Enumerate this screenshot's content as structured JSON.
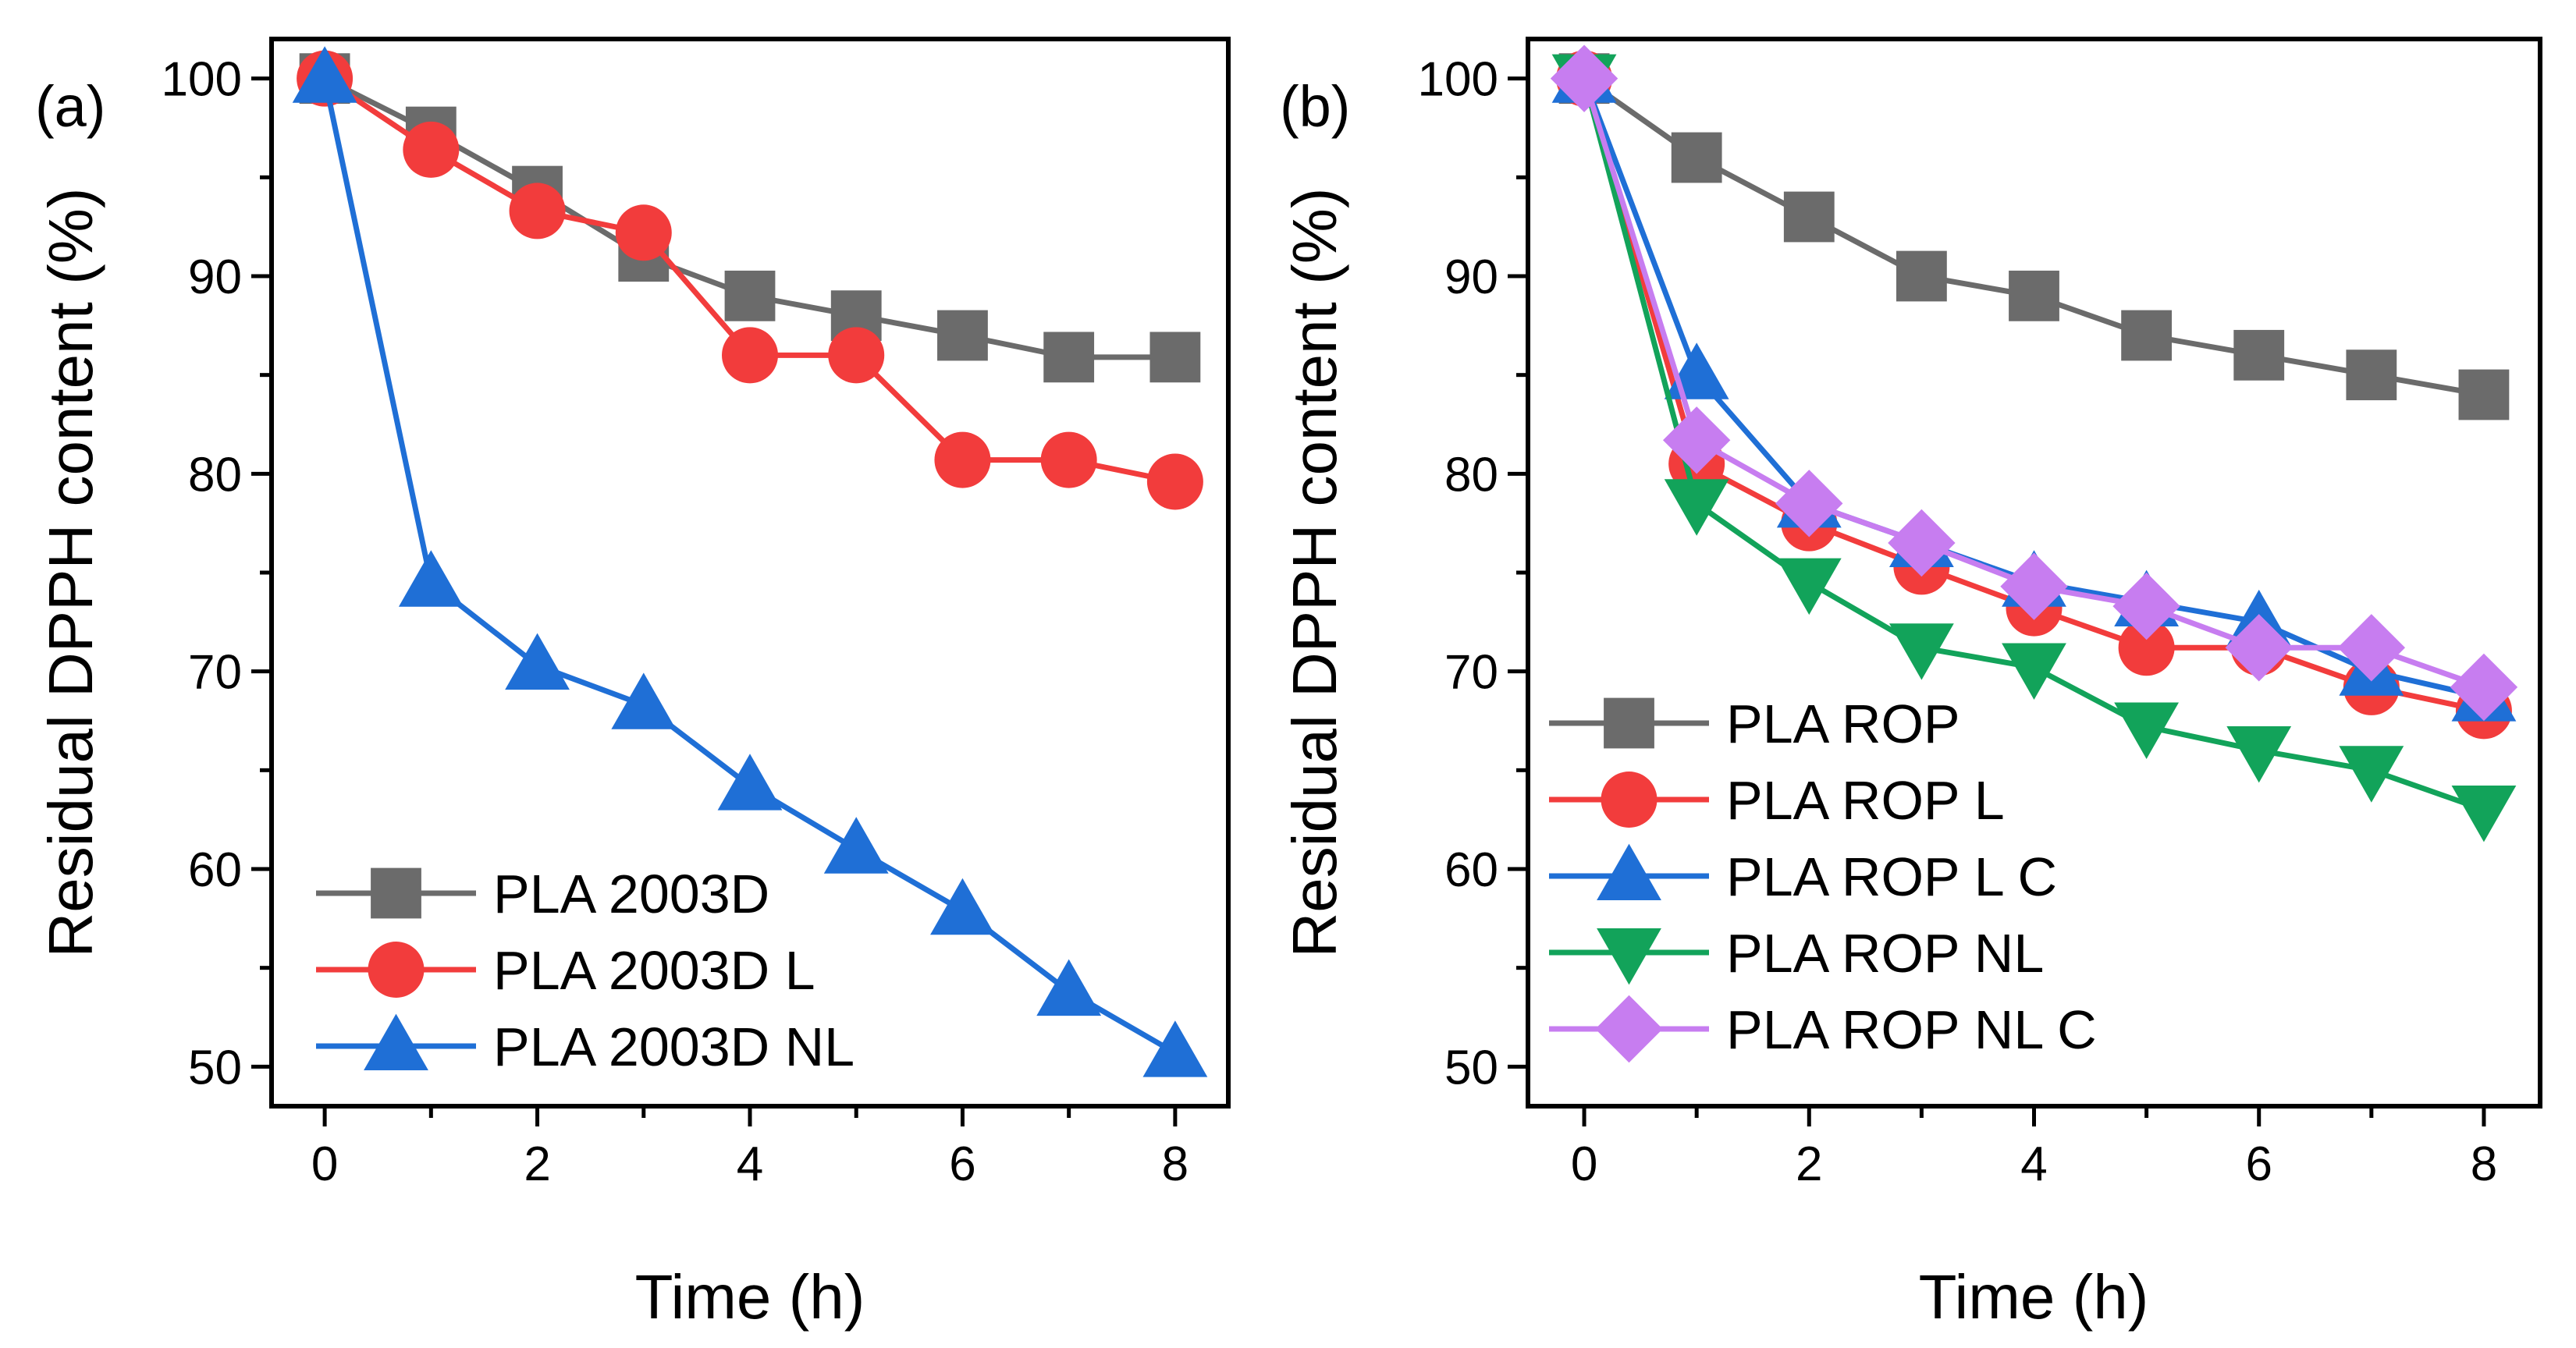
{
  "chart_data": [
    {
      "type": "line",
      "panel_label": "(a)",
      "xlabel": "Time (h)",
      "ylabel": "Residual DPPH content (%)",
      "xlim": [
        -0.5,
        8.5
      ],
      "ylim": [
        48,
        102
      ],
      "xticks": [
        0,
        2,
        4,
        6,
        8
      ],
      "yticks": [
        50,
        60,
        70,
        80,
        90,
        100
      ],
      "legend_position": "bottom-left",
      "x": [
        0,
        1,
        2,
        3,
        4,
        5,
        6,
        7,
        8
      ],
      "series": [
        {
          "name": "PLA 2003D",
          "color": "#6b6b6b",
          "marker": "square",
          "values": [
            100,
            97.3,
            94.3,
            91,
            89,
            88,
            87,
            85.9,
            85.9
          ]
        },
        {
          "name": "PLA 2003D L",
          "color": "#f23c3c",
          "marker": "circle",
          "values": [
            100,
            96.4,
            93.3,
            92.2,
            86,
            86,
            80.7,
            80.7,
            79.6
          ]
        },
        {
          "name": "PLA 2003D NL",
          "color": "#1f6fd6",
          "marker": "triangle-up",
          "values": [
            100,
            74.5,
            70.3,
            68.3,
            64.2,
            61,
            57.9,
            53.8,
            50.7
          ]
        }
      ]
    },
    {
      "type": "line",
      "panel_label": "(b)",
      "xlabel": "Time (h)",
      "ylabel": "Residual DPPH content (%)",
      "xlim": [
        -0.5,
        8.5
      ],
      "ylim": [
        48,
        102
      ],
      "xticks": [
        0,
        2,
        4,
        6,
        8
      ],
      "yticks": [
        50,
        60,
        70,
        80,
        90,
        100
      ],
      "legend_position": "bottom-left",
      "x": [
        0,
        1,
        2,
        3,
        4,
        5,
        6,
        7,
        8
      ],
      "series": [
        {
          "name": "PLA ROP",
          "color": "#6b6b6b",
          "marker": "square",
          "values": [
            100,
            96,
            93,
            90,
            89,
            87,
            86,
            85,
            84
          ]
        },
        {
          "name": "PLA ROP L",
          "color": "#f23c3c",
          "marker": "circle",
          "values": [
            100,
            80.5,
            77.5,
            75.3,
            73.2,
            71.2,
            71.2,
            69.2,
            68
          ]
        },
        {
          "name": "PLA ROP L C",
          "color": "#1f6fd6",
          "marker": "triangle-up",
          "values": [
            100,
            85,
            78.5,
            76.5,
            74.5,
            73.5,
            72.5,
            70,
            68.7
          ]
        },
        {
          "name": "PLA ROP NL",
          "color": "#12a35a",
          "marker": "triangle-down",
          "values": [
            100,
            78.5,
            74.5,
            71.2,
            70.2,
            67.2,
            66,
            65,
            63
          ]
        },
        {
          "name": "PLA ROP NL C",
          "color": "#c77df0",
          "marker": "diamond",
          "values": [
            100,
            81.7,
            78.5,
            76.5,
            74.3,
            73.3,
            71.2,
            71.2,
            69.2
          ]
        }
      ]
    }
  ]
}
